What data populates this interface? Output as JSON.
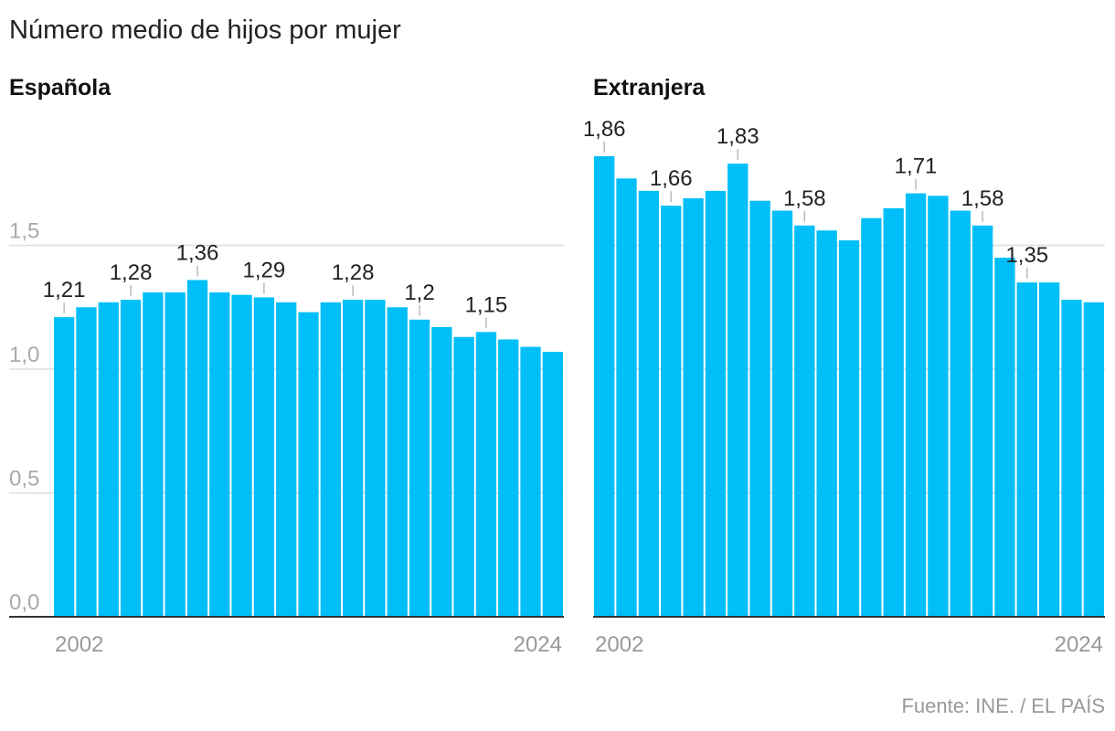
{
  "title": "Número medio de hijos por mujer",
  "source": "Fuente: INE. / EL PAÍS",
  "chart_data": [
    {
      "type": "bar",
      "title": "Española",
      "color": "#00bff8",
      "grid": true,
      "categories": [
        "2002",
        null,
        null,
        null,
        null,
        null,
        null,
        null,
        null,
        null,
        null,
        null,
        null,
        null,
        null,
        null,
        null,
        null,
        null,
        null,
        null,
        null,
        "2024"
      ],
      "values": [
        1.21,
        1.25,
        1.27,
        1.28,
        1.31,
        1.31,
        1.36,
        1.31,
        1.3,
        1.29,
        1.27,
        1.23,
        1.27,
        1.28,
        1.28,
        1.25,
        1.2,
        1.17,
        1.13,
        1.15,
        1.12,
        1.09,
        1.07
      ],
      "value_labels": [
        "1,21",
        null,
        null,
        "1,28",
        null,
        null,
        "1,36",
        null,
        null,
        "1,29",
        null,
        null,
        null,
        "1,28",
        null,
        null,
        "1,2",
        null,
        null,
        "1,15",
        null,
        null,
        null
      ],
      "ylim": [
        0,
        2.0
      ],
      "yticks": [
        {
          "value": 0,
          "label": "0,0"
        },
        {
          "value": 0.5,
          "label": "0,5"
        },
        {
          "value": 1.0,
          "label": "1,0"
        },
        {
          "value": 1.5,
          "label": "1,5"
        }
      ]
    },
    {
      "type": "bar",
      "title": "Extranjera",
      "color": "#00bff8",
      "grid": true,
      "categories": [
        "2002",
        null,
        null,
        null,
        null,
        null,
        null,
        null,
        null,
        null,
        null,
        null,
        null,
        null,
        null,
        null,
        null,
        null,
        null,
        null,
        null,
        null,
        "2024"
      ],
      "values": [
        1.86,
        1.77,
        1.72,
        1.66,
        1.69,
        1.72,
        1.83,
        1.68,
        1.64,
        1.58,
        1.56,
        1.52,
        1.61,
        1.65,
        1.71,
        1.7,
        1.64,
        1.58,
        1.45,
        1.35,
        1.35,
        1.28,
        1.27
      ],
      "value_labels": [
        "1,86",
        null,
        null,
        "1,66",
        null,
        null,
        "1,83",
        null,
        null,
        "1,58",
        null,
        null,
        null,
        null,
        "1,71",
        null,
        null,
        "1,58",
        null,
        "1,35",
        null,
        null,
        null
      ],
      "ylim": [
        0,
        2.0
      ],
      "yticks": [
        0,
        0.5,
        1.0,
        1.5
      ]
    }
  ]
}
